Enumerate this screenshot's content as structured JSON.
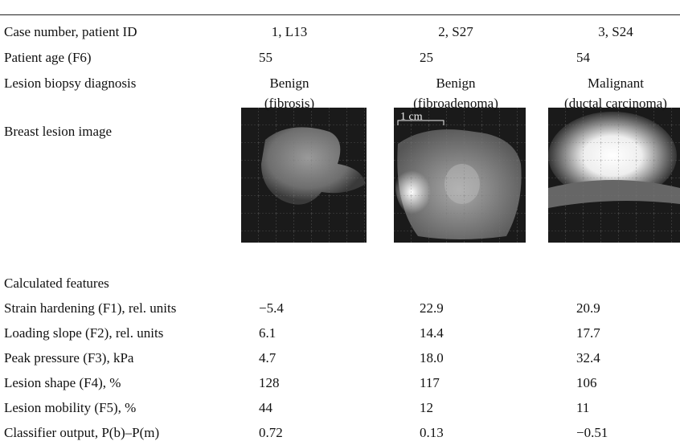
{
  "table": {
    "rows": [
      {
        "label": "Case number, patient ID",
        "cells": [
          "1, L13",
          "2, S27",
          "3, S24"
        ]
      },
      {
        "label": "Patient age (F6)",
        "cells": [
          "55",
          "25",
          "54"
        ]
      }
    ],
    "diagnosis": {
      "label": "Lesion biopsy diagnosis",
      "cells": [
        [
          "Benign",
          "(fibrosis)"
        ],
        [
          "Benign",
          "(fibroadenoma)"
        ],
        [
          "Malignant",
          "(ductal carcinoma)"
        ]
      ]
    },
    "image_row": {
      "label": "Breast lesion image",
      "scale_label": "1 cm"
    },
    "section": "Calculated features",
    "features": [
      {
        "label": "Strain hardening (F1), rel. units",
        "cells": [
          "−5.4",
          "22.9",
          "20.9"
        ]
      },
      {
        "label": "Loading slope (F2), rel. units",
        "cells": [
          "6.1",
          "14.4",
          "17.7"
        ]
      },
      {
        "label": "Peak pressure (F3), kPa",
        "cells": [
          "4.7",
          "18.0",
          "32.4"
        ]
      },
      {
        "label": "Lesion shape (F4), %",
        "cells": [
          "128",
          "117",
          "106"
        ]
      },
      {
        "label": "Lesion mobility (F5), %",
        "cells": [
          "44",
          "12",
          "11"
        ]
      },
      {
        "label": "Classifier output, P(b)–P(m)",
        "cells": [
          "0.72",
          "0.13",
          "−0.51"
        ]
      }
    ]
  }
}
